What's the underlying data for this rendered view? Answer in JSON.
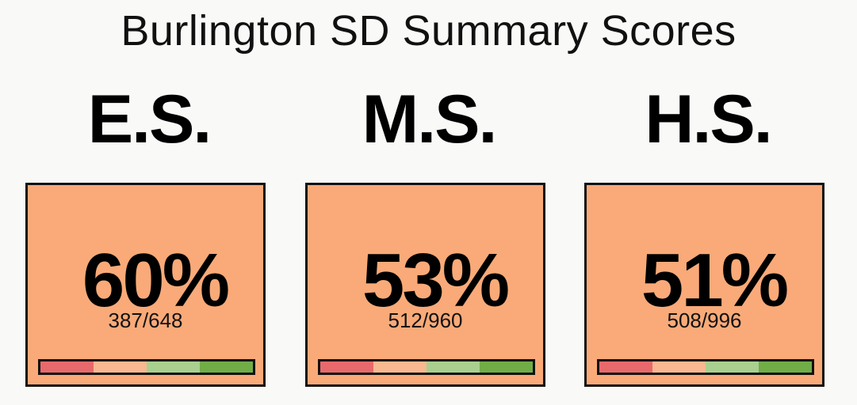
{
  "title": "Burlington SD Summary Scores",
  "cards": [
    {
      "label": "E.S.",
      "percent": "60%",
      "fraction": "387/648"
    },
    {
      "label": "M.S.",
      "percent": "53%",
      "fraction": "512/960"
    },
    {
      "label": "H.S.",
      "percent": "51%",
      "fraction": "508/996"
    }
  ]
}
